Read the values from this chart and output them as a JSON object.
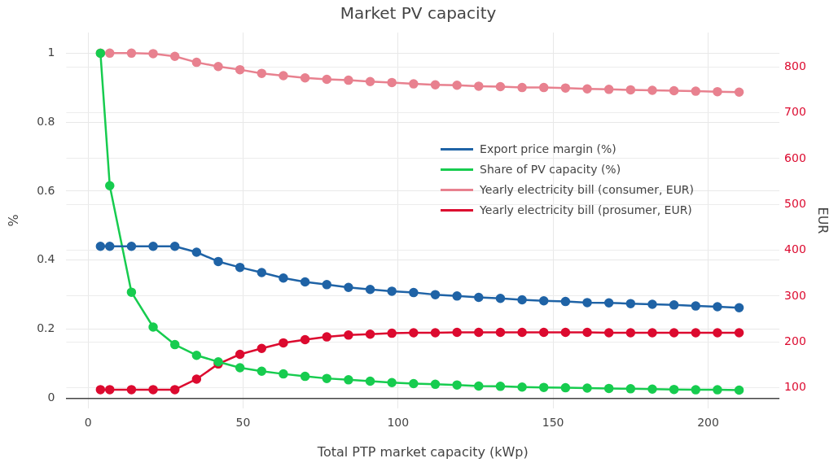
{
  "chart_data": {
    "type": "line",
    "title": "Market PV capacity",
    "xlabel": "Total PTP market capacity (kWp)",
    "ylabel": "%",
    "y2label": "EUR",
    "x": [
      4,
      7,
      14,
      21,
      28,
      35,
      42,
      49,
      56,
      63,
      70,
      77,
      84,
      91,
      98,
      105,
      112,
      119,
      126,
      133,
      140,
      147,
      154,
      161,
      168,
      175,
      182,
      189,
      196,
      203,
      210
    ],
    "series": [
      {
        "name": "Export price margin (%)",
        "color": "#1f63a6",
        "values": [
          0.44,
          0.44,
          0.44,
          0.44,
          0.44,
          0.423,
          0.396,
          0.379,
          0.364,
          0.348,
          0.337,
          0.329,
          0.321,
          0.315,
          0.31,
          0.306,
          0.3,
          0.296,
          0.292,
          0.289,
          0.285,
          0.282,
          0.28,
          0.277,
          0.276,
          0.274,
          0.272,
          0.27,
          0.267,
          0.265,
          0.262
        ]
      },
      {
        "name": "Share of PV capacity (%)",
        "color": "#17cc4f",
        "values": [
          1.0,
          0.616,
          0.307,
          0.206,
          0.155,
          0.124,
          0.105,
          0.088,
          0.078,
          0.07,
          0.063,
          0.057,
          0.053,
          0.049,
          0.045,
          0.042,
          0.04,
          0.038,
          0.035,
          0.034,
          0.032,
          0.031,
          0.03,
          0.029,
          0.028,
          0.027,
          0.026,
          0.025,
          0.024,
          0.024,
          0.023
        ]
      },
      {
        "name": "Yearly electricity bill (consumer, EUR)",
        "color": "#e8818f",
        "axis": "y2",
        "values": [
          830,
          830,
          830,
          829,
          823,
          810,
          801,
          794,
          786,
          781,
          776,
          773,
          771,
          768,
          766,
          763,
          761,
          760,
          758,
          757,
          755,
          755,
          754,
          752,
          751,
          750,
          749,
          748,
          747,
          746,
          745
        ]
      },
      {
        "name": "Yearly electricity bill (prosumer, EUR)",
        "color": "#dc0a2f",
        "axis": "y2",
        "values": [
          96,
          96,
          96,
          96,
          96,
          119,
          152,
          173,
          186,
          198,
          205,
          211,
          215,
          217,
          219,
          220,
          220,
          221,
          221,
          221,
          221,
          221,
          221,
          221,
          220,
          220,
          220,
          220,
          220,
          220,
          220
        ]
      }
    ],
    "xlim": [
      -7,
      223
    ],
    "xticks": [
      0,
      50,
      100,
      150,
      200
    ],
    "ylim": [
      -0.03,
      1.06
    ],
    "yticks": [
      0,
      0.2,
      0.4,
      0.6,
      0.8,
      1
    ],
    "y2lim": [
      55,
      875
    ],
    "y2ticks": [
      100,
      200,
      300,
      400,
      500,
      600,
      700,
      800
    ],
    "grid": true,
    "legend": "right",
    "marker": "circle",
    "line_style": "solid"
  }
}
